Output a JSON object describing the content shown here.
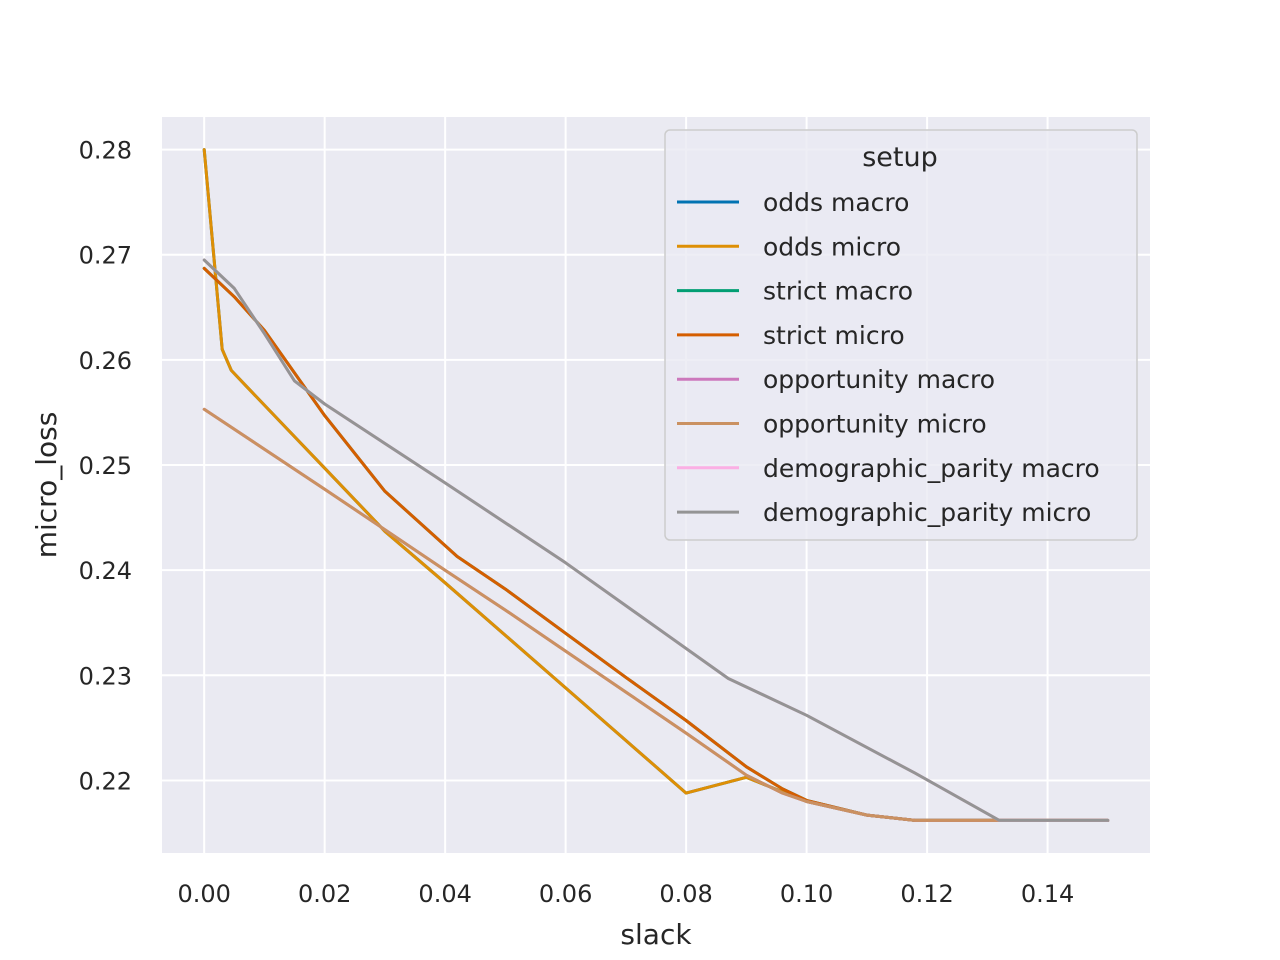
{
  "chart_data": {
    "type": "line",
    "xlabel": "slack",
    "ylabel": "micro_loss",
    "xlim": [
      -0.007,
      0.157
    ],
    "ylim": [
      0.2131,
      0.2831
    ],
    "xticks": [
      0.0,
      0.02,
      0.04,
      0.06,
      0.08,
      0.1,
      0.12,
      0.14
    ],
    "xtick_labels": [
      "0.00",
      "0.02",
      "0.04",
      "0.06",
      "0.08",
      "0.10",
      "0.12",
      "0.14"
    ],
    "yticks": [
      0.22,
      0.23,
      0.24,
      0.25,
      0.26,
      0.27,
      0.28
    ],
    "ytick_labels": [
      "0.22",
      "0.23",
      "0.24",
      "0.25",
      "0.26",
      "0.27",
      "0.28"
    ],
    "grid": true,
    "background": "#eaeaf2",
    "grid_color": "#ffffff",
    "legend": {
      "title": "setup",
      "position": "top-right"
    },
    "series": [
      {
        "name": "odds macro",
        "color": "#0173b2",
        "x": [
          0.0,
          0.003,
          0.0045,
          0.007,
          0.01,
          0.015,
          0.02,
          0.03,
          0.04,
          0.05,
          0.06,
          0.07,
          0.08,
          0.09,
          0.1,
          0.11,
          0.118,
          0.13,
          0.14,
          0.15
        ],
        "y": [
          0.28,
          0.261,
          0.259,
          0.2575,
          0.2557,
          0.2527,
          0.2497,
          0.2437,
          0.2388,
          0.2338,
          0.2288,
          0.2238,
          0.2188,
          0.2203,
          0.218,
          0.2167,
          0.2162,
          0.2162,
          0.2162,
          0.2162
        ]
      },
      {
        "name": "odds micro",
        "color": "#de8f05",
        "x": [
          0.0,
          0.003,
          0.0045,
          0.007,
          0.01,
          0.015,
          0.02,
          0.03,
          0.04,
          0.05,
          0.06,
          0.07,
          0.08,
          0.09,
          0.1,
          0.11,
          0.118,
          0.13,
          0.14,
          0.15
        ],
        "y": [
          0.28,
          0.261,
          0.259,
          0.2575,
          0.2557,
          0.2527,
          0.2497,
          0.2437,
          0.2388,
          0.2338,
          0.2288,
          0.2238,
          0.2188,
          0.2203,
          0.218,
          0.2167,
          0.2162,
          0.2162,
          0.2162,
          0.2162
        ]
      },
      {
        "name": "strict macro",
        "color": "#029e73",
        "x": [
          0.0,
          0.005,
          0.01,
          0.02,
          0.03,
          0.042,
          0.05,
          0.06,
          0.07,
          0.08,
          0.09,
          0.096,
          0.1,
          0.11,
          0.118,
          0.13,
          0.14,
          0.15
        ],
        "y": [
          0.2687,
          0.266,
          0.2628,
          0.2547,
          0.2475,
          0.2413,
          0.2382,
          0.234,
          0.2298,
          0.2257,
          0.2213,
          0.2192,
          0.2181,
          0.2167,
          0.2162,
          0.2162,
          0.2162,
          0.2162
        ]
      },
      {
        "name": "strict micro",
        "color": "#d55e00",
        "x": [
          0.0,
          0.005,
          0.01,
          0.02,
          0.03,
          0.042,
          0.05,
          0.06,
          0.07,
          0.08,
          0.09,
          0.096,
          0.1,
          0.11,
          0.118,
          0.13,
          0.14,
          0.15
        ],
        "y": [
          0.2687,
          0.266,
          0.2628,
          0.2547,
          0.2475,
          0.2413,
          0.2382,
          0.234,
          0.2298,
          0.2257,
          0.2213,
          0.2192,
          0.2181,
          0.2167,
          0.2162,
          0.2162,
          0.2162,
          0.2162
        ]
      },
      {
        "name": "opportunity macro",
        "color": "#cc78bc",
        "x": [
          0.0,
          0.02,
          0.04,
          0.05,
          0.06,
          0.07,
          0.08,
          0.09,
          0.096,
          0.1,
          0.11,
          0.118,
          0.13,
          0.14,
          0.15
        ],
        "y": [
          0.2553,
          0.2477,
          0.24,
          0.2362,
          0.2323,
          0.2284,
          0.2245,
          0.2205,
          0.2188,
          0.218,
          0.2167,
          0.2162,
          0.2162,
          0.2162,
          0.2162
        ]
      },
      {
        "name": "opportunity micro",
        "color": "#ca9161",
        "x": [
          0.0,
          0.02,
          0.04,
          0.05,
          0.06,
          0.07,
          0.08,
          0.09,
          0.096,
          0.1,
          0.11,
          0.118,
          0.13,
          0.14,
          0.15
        ],
        "y": [
          0.2553,
          0.2477,
          0.24,
          0.2362,
          0.2323,
          0.2284,
          0.2245,
          0.2205,
          0.2188,
          0.218,
          0.2167,
          0.2162,
          0.2162,
          0.2162,
          0.2162
        ]
      },
      {
        "name": "demographic_parity macro",
        "color": "#fbafe4",
        "x": [
          0.0,
          0.005,
          0.01,
          0.015,
          0.02,
          0.04,
          0.06,
          0.087,
          0.1,
          0.118,
          0.132,
          0.14,
          0.15
        ],
        "y": [
          0.2695,
          0.2668,
          0.2625,
          0.258,
          0.2558,
          0.2483,
          0.2407,
          0.2297,
          0.2262,
          0.2207,
          0.2162,
          0.2162,
          0.2162
        ]
      },
      {
        "name": "demographic_parity micro",
        "color": "#949494",
        "x": [
          0.0,
          0.005,
          0.01,
          0.015,
          0.02,
          0.04,
          0.06,
          0.087,
          0.1,
          0.118,
          0.132,
          0.14,
          0.15
        ],
        "y": [
          0.2695,
          0.2668,
          0.2625,
          0.258,
          0.2558,
          0.2483,
          0.2407,
          0.2297,
          0.2262,
          0.2207,
          0.2162,
          0.2162,
          0.2162
        ]
      }
    ]
  }
}
